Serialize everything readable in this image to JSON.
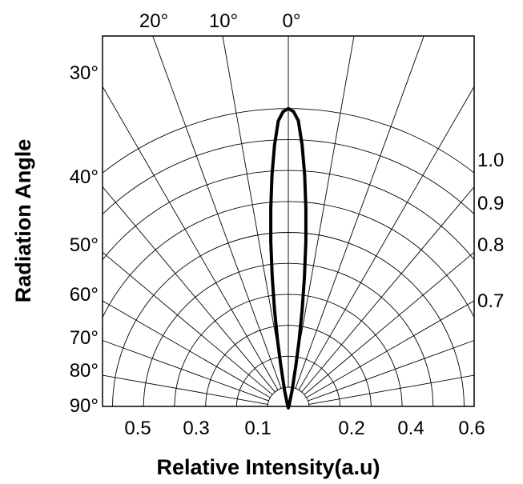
{
  "chart_data": {
    "type": "polar-radiation-pattern",
    "xlabel": "Relative Intensity(a.u)",
    "ylabel": "Radiation Angle",
    "top_angle_labels": [
      "20°",
      "10°",
      "0°"
    ],
    "left_angle_labels": [
      "30°",
      "40°",
      "50°",
      "60°",
      "70°",
      "80°",
      "90°"
    ],
    "right_intensity_labels": [
      "1.0",
      "0.9",
      "0.8",
      "0.7"
    ],
    "bottom_labels": [
      "0.5",
      "0.3",
      "0.1",
      "0.2",
      "0.4",
      "0.6"
    ],
    "angular_grid_step_deg": 10,
    "radial_rings": [
      0.1,
      0.2,
      0.3,
      0.4,
      0.5,
      0.6,
      0.7,
      0.8,
      0.9,
      1.0
    ],
    "series": [
      {
        "curve": [
          {
            "angle": 0,
            "intensity": 1.0
          },
          {
            "angle": 1,
            "intensity": 0.99
          },
          {
            "angle": 2,
            "intensity": 0.96
          },
          {
            "angle": 3,
            "intensity": 0.88
          },
          {
            "angle": 4,
            "intensity": 0.78
          },
          {
            "angle": 5,
            "intensity": 0.67
          },
          {
            "angle": 6,
            "intensity": 0.56
          },
          {
            "angle": 7,
            "intensity": 0.44
          },
          {
            "angle": 8,
            "intensity": 0.33
          },
          {
            "angle": 9,
            "intensity": 0.23
          },
          {
            "angle": 10,
            "intensity": 0.15
          },
          {
            "angle": 12,
            "intensity": 0.06
          },
          {
            "angle": 15,
            "intensity": 0.01
          },
          {
            "angle": 20,
            "intensity": 0.0
          }
        ],
        "symmetric": true,
        "color": "#000000"
      }
    ]
  }
}
